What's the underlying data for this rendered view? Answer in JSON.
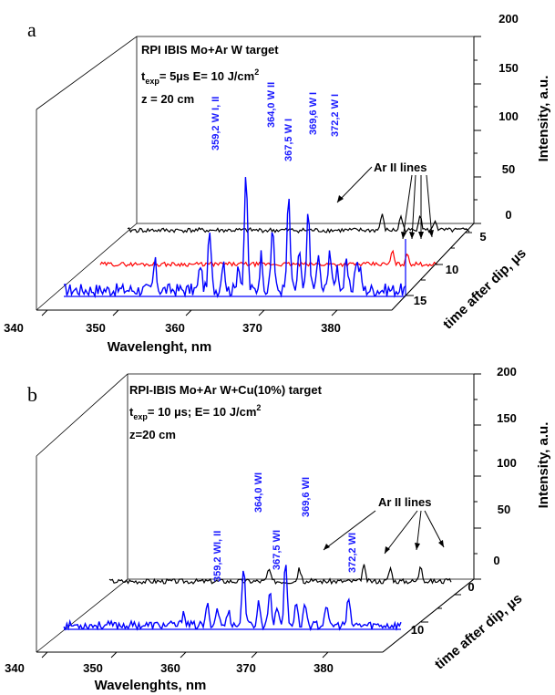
{
  "chart_data": [
    {
      "panel_letter": "a",
      "type": "line",
      "layout": "3d-waterfall",
      "info": {
        "line1": "RPI IBIS Mo+Ar  W target",
        "line2_main": "t",
        "line2_sub": "exp",
        "line2_rest": "= 5µs E= 10 J/cm",
        "line2_sup": "2",
        "line3": "z = 20 cm"
      },
      "xlabel": "Wavelenght, nm",
      "ylabel": "time after dip, µs",
      "zlabel": "Intensity, a.u.",
      "x_ticks": [
        "340",
        "350",
        "360",
        "370",
        "380"
      ],
      "y_ticks": [
        "5",
        "10",
        "15"
      ],
      "z_ticks": [
        "0",
        "50",
        "100",
        "150",
        "200"
      ],
      "xlim": [
        340,
        385
      ],
      "zlim": [
        0,
        200
      ],
      "series": [
        {
          "time": 5,
          "color": "#000000"
        },
        {
          "time": 10,
          "color": "#ff0000"
        },
        {
          "time": 15,
          "color": "#0000ff"
        }
      ],
      "peaks": [
        {
          "label": "359,2 W I, II",
          "x": 359.2,
          "z": 62
        },
        {
          "label": "364,0 W II",
          "x": 364.0,
          "z": 125
        },
        {
          "label": "367,5 W I",
          "x": 367.5,
          "z": 70
        },
        {
          "label": "369,6 W I",
          "x": 369.6,
          "z": 100
        },
        {
          "label": "372,2 W I",
          "x": 372.2,
          "z": 85
        }
      ],
      "annotation": "Ar II lines"
    },
    {
      "panel_letter": "b",
      "type": "line",
      "layout": "3d-waterfall",
      "info": {
        "line1": "RPI-IBIS Mo+Ar W+Cu(10%) target",
        "line2_main": "t",
        "line2_sub": "exp",
        "line2_rest": "= 10 µs; E= 10 J/cm",
        "line2_sup": "2",
        "line3": "z=20 cm"
      },
      "xlabel": "Wavelenghts, nm",
      "ylabel": "time after dip, µs",
      "zlabel": "Intensity, a.u.",
      "x_ticks": [
        "340",
        "350",
        "360",
        "370",
        "380"
      ],
      "y_ticks": [
        "0",
        "10"
      ],
      "z_ticks": [
        "0",
        "50",
        "100",
        "150",
        "200"
      ],
      "xlim": [
        340,
        385
      ],
      "zlim": [
        0,
        200
      ],
      "series": [
        {
          "time": 0,
          "color": "#000000"
        },
        {
          "time": 10,
          "color": "#0000ff"
        }
      ],
      "peaks": [
        {
          "label": "359,2 WI, II",
          "x": 359.2,
          "z": 25
        },
        {
          "label": "364,0 WI",
          "x": 364.0,
          "z": 75
        },
        {
          "label": "367,5 WI",
          "x": 367.5,
          "z": 45
        },
        {
          "label": "369,6 WI",
          "x": 369.6,
          "z": 78
        },
        {
          "label": "372,2 WI",
          "x": 372.2,
          "z": 28
        }
      ],
      "annotation": "Ar II lines"
    }
  ]
}
